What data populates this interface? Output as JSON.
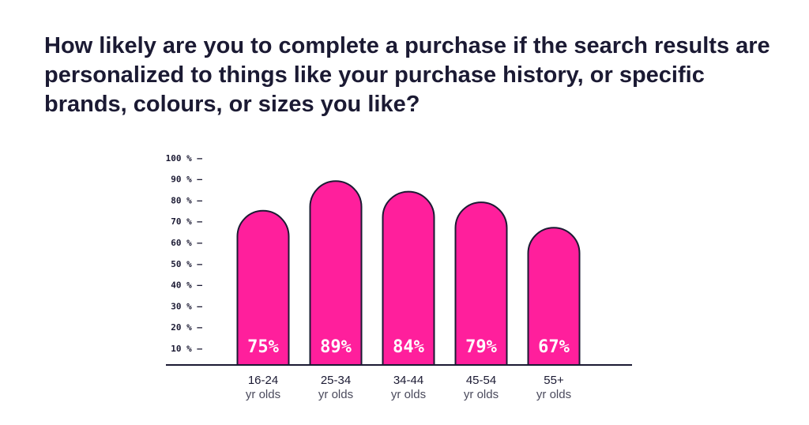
{
  "title": "How likely are you to complete a purchase if the search results are personalized to things like your purchase history, or specific brands, colours, or sizes you like?",
  "colors": {
    "bar": "#ff1f9c",
    "outline": "#1b1a33",
    "text": "#1b1a33"
  },
  "chart_data": {
    "type": "bar",
    "categories": [
      "16-24 yr olds",
      "25-34 yr olds",
      "34-44 yr olds",
      "45-54 yr olds",
      "55+ yr olds"
    ],
    "category_lines": [
      [
        "16-24",
        "yr olds"
      ],
      [
        "25-34",
        "yr olds"
      ],
      [
        "34-44",
        "yr olds"
      ],
      [
        "45-54",
        "yr olds"
      ],
      [
        "55+",
        "yr olds"
      ]
    ],
    "values": [
      75,
      89,
      84,
      79,
      67
    ],
    "value_labels": [
      "75%",
      "89%",
      "84%",
      "79%",
      "67%"
    ],
    "yticks": [
      10,
      20,
      30,
      40,
      50,
      60,
      70,
      80,
      90,
      100
    ],
    "ytick_labels": [
      "10 % —",
      "20 % —",
      "30 % —",
      "40 % —",
      "50 % —",
      "60 % —",
      "70 % —",
      "80 % —",
      "90 % —",
      "100 % —"
    ],
    "ylim": [
      0,
      100
    ],
    "xlabel": "",
    "ylabel": "",
    "grid": false
  }
}
